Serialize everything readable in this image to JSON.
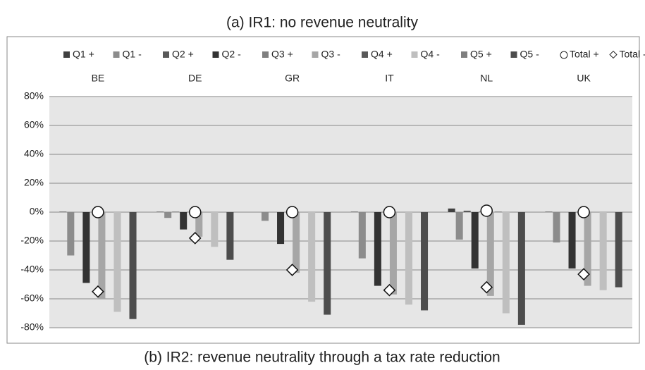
{
  "chart_data": {
    "type": "bar",
    "title": "(a) IR1: no revenue neutrality",
    "caption": "(b) IR2: revenue neutrality through a tax rate reduction",
    "categories": [
      "BE",
      "DE",
      "GR",
      "IT",
      "NL",
      "UK"
    ],
    "series": [
      {
        "name": "Q1 +",
        "color": "#404040",
        "values": [
          0.3,
          0.3,
          0,
          0.3,
          2.5,
          0.3
        ]
      },
      {
        "name": "Q1 -",
        "color": "#8c8c8c",
        "values": [
          -30,
          -4,
          -6,
          -32,
          -19,
          -21
        ]
      },
      {
        "name": "Q2 +",
        "color": "#595959",
        "values": [
          0,
          0.3,
          0,
          0,
          1,
          0
        ]
      },
      {
        "name": "Q2 -",
        "color": "#333333",
        "values": [
          -49,
          -12,
          -22,
          -51,
          -39,
          -39
        ]
      },
      {
        "name": "Q3 +",
        "color": "#7f7f7f",
        "values": [
          0,
          0.3,
          0,
          0,
          0.5,
          0
        ]
      },
      {
        "name": "Q3 -",
        "color": "#a6a6a6",
        "values": [
          -60,
          -17,
          -42,
          -57,
          -58,
          -51
        ]
      },
      {
        "name": "Q4 +",
        "color": "#595959",
        "values": [
          0,
          0,
          0,
          0,
          0.3,
          0
        ]
      },
      {
        "name": "Q4 -",
        "color": "#bfbfbf",
        "values": [
          -69,
          -24,
          -62,
          -64,
          -70,
          -54
        ]
      },
      {
        "name": "Q5 +",
        "color": "#7f7f7f",
        "values": [
          0,
          0,
          0,
          0,
          0.2,
          0
        ]
      },
      {
        "name": "Q5 -",
        "color": "#4d4d4d",
        "values": [
          -74,
          -33,
          -71,
          -68,
          -78,
          -52
        ]
      },
      {
        "name": "Total +",
        "type": "circle",
        "color": "#ffffff",
        "values": [
          0,
          0,
          0,
          0,
          1,
          0
        ]
      },
      {
        "name": "Total -",
        "type": "diamond",
        "color": "#ffffff",
        "values": [
          -55,
          -18,
          -40,
          -54,
          -52,
          -43
        ]
      }
    ],
    "ylim": [
      -80,
      80
    ],
    "yticks": [
      {
        "value": -80,
        "label": "-80%"
      },
      {
        "value": -60,
        "label": "-60%"
      },
      {
        "value": -40,
        "label": "-40%"
      },
      {
        "value": -20,
        "label": "-20%"
      },
      {
        "value": 0,
        "label": "0%"
      },
      {
        "value": 20,
        "label": "20%"
      },
      {
        "value": 40,
        "label": "40%"
      },
      {
        "value": 60,
        "label": "60%"
      },
      {
        "value": 80,
        "label": "80%"
      }
    ],
    "grid": true
  }
}
